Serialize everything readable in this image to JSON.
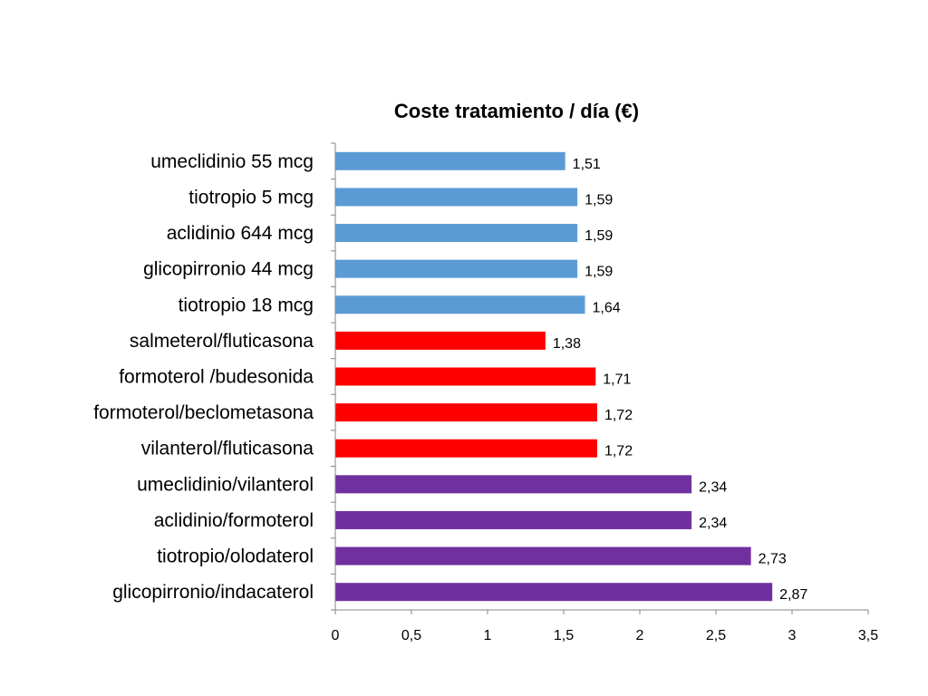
{
  "chart_data": {
    "type": "bar",
    "orientation": "horizontal",
    "title": "Coste tratamiento / día (€)",
    "xlabel": "",
    "ylabel": "",
    "xlim": [
      0,
      3.5
    ],
    "x_ticks": [
      0,
      0.5,
      1,
      1.5,
      2,
      2.5,
      3,
      3.5
    ],
    "x_tick_labels": [
      "0",
      "0,5",
      "1",
      "1,5",
      "2",
      "2,5",
      "3",
      "3,5"
    ],
    "grid": false,
    "legend": "none",
    "categories": [
      "umeclidinio 55 mcg",
      "tiotropio 5 mcg",
      "aclidinio 644 mcg",
      "glicopirronio 44 mcg",
      "tiotropio 18 mcg",
      "salmeterol/fluticasona",
      "formoterol /budesonida",
      "formoterol/beclometasona",
      "vilanterol/fluticasona",
      "umeclidinio/vilanterol",
      "aclidinio/formoterol",
      "tiotropio/olodaterol",
      "glicopirronio/indacaterol"
    ],
    "values": [
      1.51,
      1.59,
      1.59,
      1.59,
      1.64,
      1.38,
      1.71,
      1.72,
      1.72,
      2.34,
      2.34,
      2.73,
      2.87
    ],
    "value_labels": [
      "1,51",
      "1,59",
      "1,59",
      "1,59",
      "1,64",
      "1,38",
      "1,71",
      "1,72",
      "1,72",
      "2,34",
      "2,34",
      "2,73",
      "2,87"
    ],
    "bar_colors": [
      "#5b9bd5",
      "#5b9bd5",
      "#5b9bd5",
      "#5b9bd5",
      "#5b9bd5",
      "#ff0000",
      "#ff0000",
      "#ff0000",
      "#ff0000",
      "#7030a0",
      "#7030a0",
      "#7030a0",
      "#7030a0"
    ]
  }
}
